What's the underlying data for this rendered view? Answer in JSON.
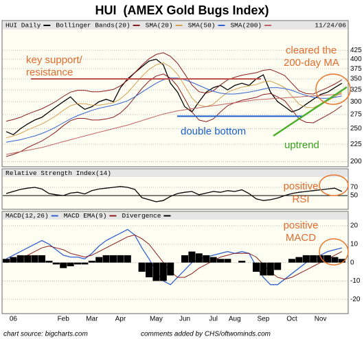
{
  "title": "HUI  (AMEX Gold Bugs Index)",
  "chart_data": [
    {
      "type": "line",
      "date": "11/24/06",
      "log_scale": true,
      "ylim": [
        195,
        480
      ],
      "yticks": [
        200,
        225,
        250,
        275,
        300,
        325,
        350,
        375,
        400,
        425
      ],
      "grid": true,
      "support_level": 350,
      "double_bottom_level": 272,
      "support_label": [
        "key support/",
        "resistance"
      ],
      "cleared_label": [
        "cleared the",
        "200-day MA"
      ],
      "double_bottom_label": "double bottom",
      "uptrend_label": "uptrend",
      "series": [
        {
          "name": "HUI Daily",
          "color": "#000000",
          "values": [
            245,
            240,
            250,
            258,
            265,
            270,
            280,
            290,
            300,
            310,
            295,
            285,
            290,
            300,
            305,
            300,
            330,
            350,
            365,
            380,
            395,
            400,
            385,
            340,
            320,
            290,
            280,
            300,
            320,
            330,
            335,
            325,
            335,
            340,
            335,
            350,
            360,
            320,
            300,
            290,
            280,
            285,
            295,
            305,
            315,
            320,
            330,
            340
          ]
        },
        {
          "name": "Bollinger Bands(20)",
          "color": "#8b1a1a",
          "upper": [
            263,
            266,
            270,
            276,
            281,
            286,
            293,
            301,
            311,
            320,
            324,
            324,
            321,
            321,
            323,
            326,
            334,
            347,
            365,
            384,
            401,
            413,
            418,
            408,
            389,
            362,
            336,
            321,
            318,
            323,
            336,
            348,
            354,
            359,
            362,
            365,
            371,
            373,
            366,
            358,
            340,
            323,
            317,
            316,
            323,
            330,
            338,
            348
          ],
          "lower": [
            207,
            210,
            214,
            220,
            225,
            230,
            237,
            245,
            255,
            264,
            268,
            268,
            265,
            265,
            267,
            270,
            278,
            291,
            309,
            328,
            345,
            357,
            362,
            352,
            333,
            306,
            280,
            265,
            262,
            267,
            280,
            292,
            298,
            303,
            306,
            309,
            315,
            317,
            310,
            302,
            284,
            267,
            261,
            260,
            267,
            274,
            282,
            292
          ]
        },
        {
          "name": "SMA(20)",
          "color": "#d4a050",
          "values": [
            235,
            238,
            242,
            248,
            253,
            258,
            265,
            273,
            283,
            292,
            296,
            296,
            293,
            293,
            295,
            298,
            306,
            319,
            337,
            356,
            373,
            385,
            390,
            380,
            361,
            334,
            308,
            293,
            290,
            295,
            308,
            320,
            326,
            331,
            334,
            337,
            343,
            345,
            338,
            330,
            312,
            295,
            289,
            288,
            295,
            302,
            310,
            320
          ]
        },
        {
          "name": "SMA(50)",
          "color": "#3060d0",
          "values": [
            228,
            230,
            232,
            235,
            238,
            242,
            247,
            253,
            260,
            267,
            273,
            278,
            283,
            287,
            290,
            293,
            297,
            302,
            310,
            320,
            330,
            340,
            348,
            352,
            352,
            348,
            342,
            335,
            328,
            322,
            318,
            316,
            316,
            318,
            320,
            323,
            327,
            330,
            330,
            328,
            324,
            318,
            313,
            309,
            307,
            307,
            309,
            312
          ]
        },
        {
          "name": "SMA(200)",
          "color": "#c06060",
          "values": [
            210,
            212,
            214,
            216,
            218,
            220,
            223,
            226,
            229,
            232,
            235,
            238,
            241,
            244,
            247,
            250,
            253,
            256,
            260,
            264,
            268,
            272,
            276,
            279,
            282,
            284,
            286,
            288,
            290,
            292,
            294,
            296,
            298,
            300,
            302,
            304,
            305,
            306,
            307,
            308,
            309,
            310,
            311,
            312,
            313,
            314,
            315,
            316
          ]
        }
      ]
    },
    {
      "type": "line",
      "ylim": [
        20,
        95
      ],
      "yticks": [
        50,
        70
      ],
      "grid": true,
      "reference_line": 50,
      "note": [
        "positive",
        "RSI"
      ],
      "series": [
        {
          "name": "Relative Strength Index(14)",
          "color": "#000000",
          "values": [
            55,
            60,
            65,
            68,
            70,
            66,
            55,
            52,
            50,
            56,
            58,
            54,
            62,
            66,
            68,
            70,
            72,
            70,
            65,
            45,
            40,
            35,
            38,
            48,
            55,
            58,
            60,
            52,
            56,
            60,
            58,
            62,
            60,
            64,
            55,
            42,
            38,
            40,
            44,
            50,
            55,
            58,
            60,
            62,
            64,
            66,
            68,
            60
          ]
        }
      ]
    },
    {
      "type": "line",
      "ylim": [
        -27,
        23
      ],
      "yticks": [
        20,
        10,
        0,
        -10,
        -20
      ],
      "grid": true,
      "note": [
        "positive",
        "MACD"
      ],
      "categories": [
        null,
        "06",
        null,
        null,
        null,
        null,
        null,
        null,
        "Feb",
        null,
        null,
        null,
        "Mar",
        null,
        null,
        null,
        "Apr",
        null,
        null,
        null,
        null,
        "May",
        null,
        null,
        null,
        "Jun",
        null,
        null,
        null,
        "Jul",
        null,
        null,
        "Aug",
        null,
        null,
        null,
        "Sep",
        null,
        null,
        null,
        "Oct",
        null,
        null,
        null,
        "Nov",
        null,
        null,
        null
      ],
      "series": [
        {
          "name": "MACD(12,26)",
          "color": "#3060d0",
          "values": [
            2,
            4,
            6,
            8,
            10,
            12,
            10,
            7,
            4,
            3,
            3,
            2,
            5,
            9,
            12,
            14,
            16,
            18,
            15,
            8,
            2,
            -5,
            -10,
            -12,
            -8,
            -4,
            0,
            2,
            3,
            4,
            5,
            6,
            5,
            6,
            5,
            -2,
            -8,
            -12,
            -12,
            -9,
            -6,
            -3,
            0,
            2,
            4,
            6,
            7,
            8
          ]
        },
        {
          "name": "MACD EMA(9)",
          "color": "#8b1a1a",
          "values": [
            0,
            1,
            2,
            4,
            6,
            8,
            9,
            8,
            7,
            5,
            4,
            3,
            4,
            6,
            8,
            10,
            12,
            14,
            15,
            13,
            10,
            5,
            0,
            -5,
            -8,
            -8,
            -6,
            -3,
            -1,
            1,
            3,
            4,
            5,
            5,
            5,
            3,
            -1,
            -5,
            -8,
            -9,
            -8,
            -6,
            -4,
            -2,
            0,
            2,
            4,
            6
          ]
        },
        {
          "name": "Divergence",
          "color": "#000000",
          "style": "bar",
          "values": [
            2,
            3,
            4,
            4,
            4,
            4,
            1,
            -1,
            -3,
            -2,
            -1,
            -1,
            1,
            3,
            4,
            4,
            4,
            4,
            0,
            -5,
            -8,
            -10,
            -10,
            -7,
            0,
            4,
            6,
            5,
            4,
            3,
            2,
            2,
            0,
            1,
            0,
            -5,
            -7,
            -7,
            -4,
            0,
            2,
            3,
            4,
            4,
            4,
            4,
            3,
            2
          ]
        }
      ]
    }
  ],
  "footer": {
    "source": "chart source: bigcharts.com",
    "comments": "comments added by CHS/oftwominds.com"
  }
}
